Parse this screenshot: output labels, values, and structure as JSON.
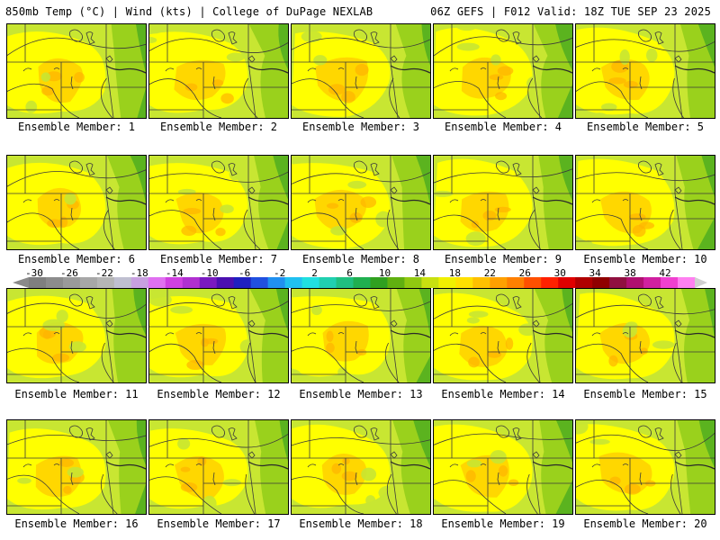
{
  "header": {
    "left": "850mb Temp (°C) | Wind (kts) | College of DuPage NEXLAB",
    "right": "06Z GEFS | F012 Valid: 18Z TUE SEP 23 2025"
  },
  "panel_prefix": "Ensemble Member: ",
  "members": [
    "1",
    "2",
    "3",
    "4",
    "5",
    "6",
    "7",
    "8",
    "9",
    "10",
    "11",
    "12",
    "13",
    "14",
    "15",
    "16",
    "17",
    "18",
    "19",
    "20"
  ],
  "colorbar": {
    "ticks": [
      "-30",
      "-26",
      "-22",
      "-18",
      "-14",
      "-10",
      "-6",
      "-2",
      "2",
      "6",
      "10",
      "14",
      "18",
      "22",
      "26",
      "30",
      "34",
      "38",
      "42"
    ],
    "colors": [
      "#7f7f7f",
      "#8c8c8c",
      "#9a9a9a",
      "#a7a7a7",
      "#b5b5b5",
      "#bfbfd0",
      "#c8a0e0",
      "#e070f0",
      "#d040e0",
      "#b030d0",
      "#7a1ac0",
      "#4b10b0",
      "#2020c0",
      "#2050e0",
      "#2090f0",
      "#20c0f0",
      "#20e0e0",
      "#20d0b0",
      "#20c080",
      "#20b050",
      "#30a020",
      "#60b010",
      "#90c810",
      "#c8e010",
      "#f0f000",
      "#ffe000",
      "#ffc000",
      "#ffa000",
      "#ff8000",
      "#ff5000",
      "#ff2000",
      "#e00000",
      "#b00000",
      "#900000",
      "#901040",
      "#b01070",
      "#d020a0",
      "#f040d0",
      "#ff80f0"
    ],
    "arrow_color": "#d0d0d0"
  },
  "map_colors": {
    "light_green": "#c8e632",
    "yellow": "#ffff00",
    "gold": "#ffd000",
    "orange": "#ffb400",
    "mid_green": "#9ad11c",
    "dark_green": "#5bb31f",
    "line": "#3a3a3a",
    "border": "#000000"
  }
}
